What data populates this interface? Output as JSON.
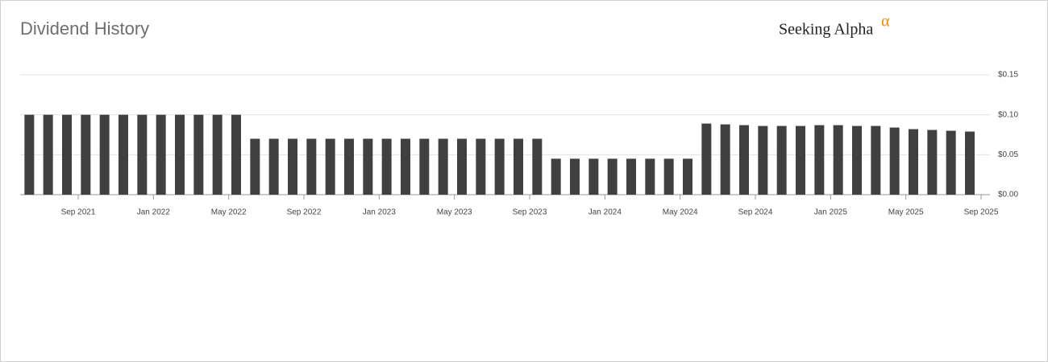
{
  "chart_data": {
    "type": "bar",
    "title": "Dividend History",
    "logo_text": "Seeking Alpha",
    "logo_symbol": "α",
    "x": [
      "2021-06",
      "2021-07",
      "2021-08",
      "2021-09",
      "2021-10",
      "2021-11",
      "2021-12",
      "2022-01",
      "2022-02",
      "2022-03",
      "2022-04",
      "2022-05",
      "2022-06",
      "2022-07",
      "2022-08",
      "2022-09",
      "2022-10",
      "2022-11",
      "2022-12",
      "2023-01",
      "2023-02",
      "2023-03",
      "2023-04",
      "2023-05",
      "2023-06",
      "2023-07",
      "2023-08",
      "2023-09",
      "2023-10",
      "2023-11",
      "2023-12",
      "2024-01",
      "2024-02",
      "2024-03",
      "2024-04",
      "2024-05",
      "2024-06",
      "2024-07",
      "2024-08",
      "2024-09",
      "2024-10",
      "2024-11",
      "2024-12",
      "2025-01",
      "2025-02",
      "2025-03",
      "2025-04",
      "2025-05",
      "2025-06",
      "2025-07",
      "2025-08"
    ],
    "values": [
      0.1,
      0.1,
      0.1,
      0.1,
      0.1,
      0.1,
      0.1,
      0.1,
      0.1,
      0.1,
      0.1,
      0.1,
      0.07,
      0.07,
      0.07,
      0.07,
      0.07,
      0.07,
      0.07,
      0.07,
      0.07,
      0.07,
      0.07,
      0.07,
      0.07,
      0.07,
      0.07,
      0.07,
      0.045,
      0.045,
      0.045,
      0.045,
      0.045,
      0.045,
      0.045,
      0.045,
      0.089,
      0.088,
      0.087,
      0.086,
      0.086,
      0.086,
      0.087,
      0.087,
      0.086,
      0.086,
      0.084,
      0.082,
      0.081,
      0.08,
      0.079
    ],
    "color": "#404042",
    "xlim": [
      "2021-06",
      "2025-09"
    ],
    "xticks": [
      {
        "value": "2021-09",
        "label": "Sep 2021"
      },
      {
        "value": "2022-01",
        "label": "Jan 2022"
      },
      {
        "value": "2022-05",
        "label": "May 2022"
      },
      {
        "value": "2022-09",
        "label": "Sep 2022"
      },
      {
        "value": "2023-01",
        "label": "Jan 2023"
      },
      {
        "value": "2023-05",
        "label": "May 2023"
      },
      {
        "value": "2023-09",
        "label": "Sep 2023"
      },
      {
        "value": "2024-01",
        "label": "Jan 2024"
      },
      {
        "value": "2024-05",
        "label": "May 2024"
      },
      {
        "value": "2024-09",
        "label": "Sep 2024"
      },
      {
        "value": "2025-01",
        "label": "Jan 2025"
      },
      {
        "value": "2025-05",
        "label": "May 2025"
      },
      {
        "value": "2025-09",
        "label": "Sep 2025"
      }
    ],
    "ylim": [
      0,
      0.15
    ],
    "yticks": [
      {
        "value": 0,
        "label": "$0.00"
      },
      {
        "value": 0.05,
        "label": "$0.05"
      },
      {
        "value": 0.1,
        "label": "$0.10"
      },
      {
        "value": 0.15,
        "label": "$0.15"
      }
    ],
    "grid": true
  }
}
